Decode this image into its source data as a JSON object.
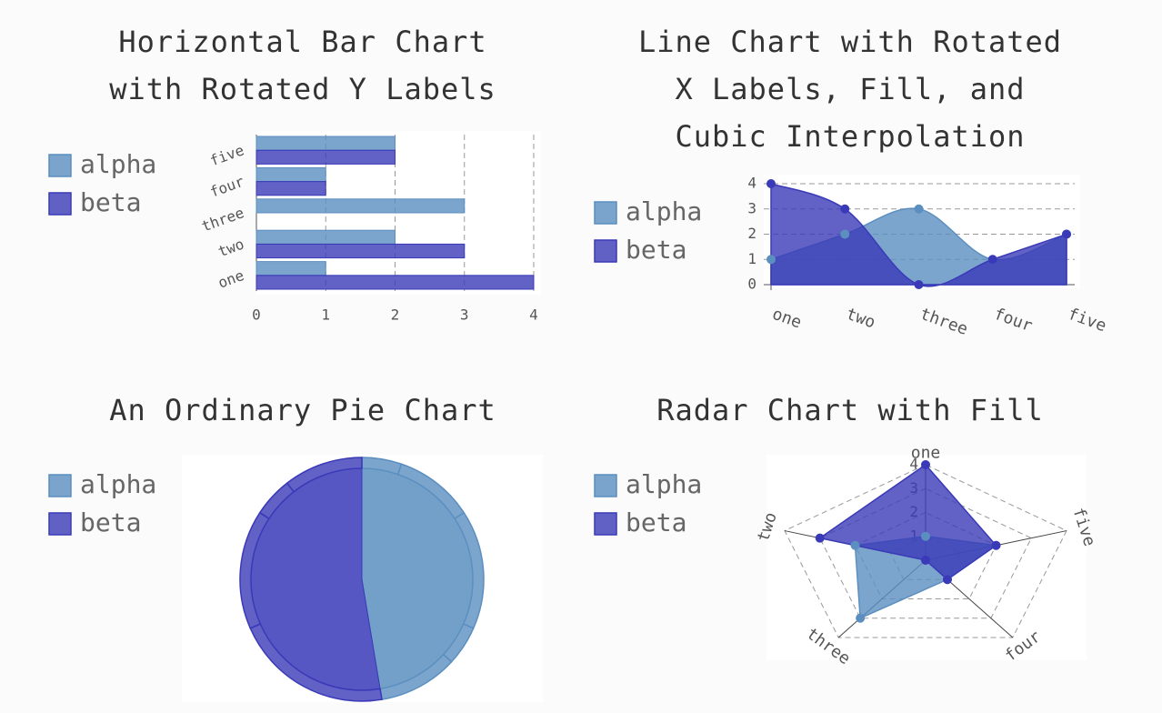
{
  "chart_data": [
    {
      "type": "hbar",
      "title": "Horizontal Bar Chart with Rotated Y Labels",
      "categories": [
        "one",
        "two",
        "three",
        "four",
        "five"
      ],
      "series": [
        {
          "name": "alpha",
          "color": "#5b8fc0",
          "values": [
            1,
            2,
            3,
            1,
            2
          ]
        },
        {
          "name": "beta",
          "color": "#3a3ab8",
          "values": [
            4,
            3,
            0,
            1,
            2
          ]
        }
      ],
      "xlim": [
        0,
        4
      ],
      "xticks": [
        0,
        1,
        2,
        3,
        4
      ],
      "grid": true
    },
    {
      "type": "line",
      "title": "Line Chart with Rotated X Labels, Fill, and Cubic Interpolation",
      "categories": [
        "one",
        "two",
        "three",
        "four",
        "five"
      ],
      "series": [
        {
          "name": "alpha",
          "color": "#5b8fc0",
          "values": [
            1,
            2,
            3,
            1,
            2
          ]
        },
        {
          "name": "beta",
          "color": "#3a3ab8",
          "values": [
            4,
            3,
            0,
            1,
            2
          ]
        }
      ],
      "ylim": [
        0,
        4
      ],
      "yticks": [
        0,
        1,
        2,
        3,
        4
      ],
      "grid": true,
      "fill": true,
      "interpolation": "cubic"
    },
    {
      "type": "pie",
      "title": "An Ordinary Pie Chart",
      "series": [
        {
          "name": "alpha",
          "color": "#5b8fc0",
          "values": [
            1,
            2,
            3,
            1,
            2
          ]
        },
        {
          "name": "beta",
          "color": "#3a3ab8",
          "values": [
            4,
            3,
            0,
            1,
            2
          ]
        }
      ]
    },
    {
      "type": "radar",
      "title": "Radar Chart with Fill",
      "categories": [
        "one",
        "two",
        "three",
        "four",
        "five"
      ],
      "series": [
        {
          "name": "alpha",
          "color": "#5b8fc0",
          "values": [
            1,
            2,
            3,
            1,
            2
          ]
        },
        {
          "name": "beta",
          "color": "#3a3ab8",
          "values": [
            4,
            3,
            0,
            1,
            2
          ]
        }
      ],
      "ylim": [
        0,
        4
      ],
      "yticks": [
        1,
        2,
        3,
        4
      ],
      "fill": true
    }
  ]
}
